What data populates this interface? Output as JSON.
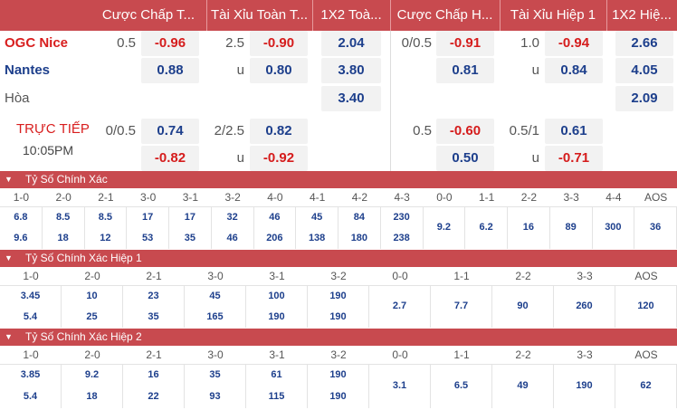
{
  "header": {
    "cols": [
      "Cược Chấp T...",
      "Tài Xỉu Toàn T...",
      "1X2 Toà...",
      "Cược Chấp H...",
      "Tài Xỉu Hiệp 1",
      "1X2 Hiệ..."
    ]
  },
  "teams": {
    "home": "OGC Nice",
    "away": "Nantes",
    "draw": "Hòa"
  },
  "live": {
    "label": "TRỰC TIẾP",
    "time": "10:05PM"
  },
  "odds": {
    "r1": {
      "hcp": "0.5",
      "hcp_odds": "-0.96",
      "ou": "2.5",
      "ou_odds": "-0.90",
      "x12": "2.04",
      "h1hcp": "0/0.5",
      "h1hcp_odds": "-0.91",
      "h1ou": "1.0",
      "h1ou_odds": "-0.94",
      "h1x12": "2.66"
    },
    "r2": {
      "hcp_odds": "0.88",
      "ou": "u",
      "ou_odds": "0.80",
      "x12": "3.80",
      "h1hcp_odds": "0.81",
      "h1ou": "u",
      "h1ou_odds": "0.84",
      "h1x12": "4.05"
    },
    "r3": {
      "x12": "3.40",
      "h1x12": "2.09"
    },
    "r4": {
      "hcp": "0/0.5",
      "hcp_odds": "0.74",
      "ou": "2/2.5",
      "ou_odds": "0.82",
      "h1hcp": "0.5",
      "h1hcp_odds": "-0.60",
      "h1ou": "0.5/1",
      "h1ou_odds": "0.61"
    },
    "r5": {
      "hcp_odds": "-0.82",
      "ou": "u",
      "ou_odds": "-0.92",
      "h1hcp_odds": "0.50",
      "h1ou": "u",
      "h1ou_odds": "-0.71"
    }
  },
  "sections": [
    {
      "title": "Tỷ Số Chính Xác",
      "labels": [
        "1-0",
        "2-0",
        "2-1",
        "3-0",
        "3-1",
        "3-2",
        "4-0",
        "4-1",
        "4-2",
        "4-3",
        "0-0",
        "1-1",
        "2-2",
        "3-3",
        "4-4",
        "AOS"
      ],
      "top": [
        "6.8",
        "8.5",
        "8.5",
        "17",
        "17",
        "32",
        "46",
        "45",
        "84",
        "230",
        "9.2",
        "6.2",
        "16",
        "89",
        "300",
        "36"
      ],
      "bottom": [
        "9.6",
        "18",
        "12",
        "53",
        "35",
        "46",
        "206",
        "138",
        "180",
        "238",
        "",
        "",
        "",
        "",
        "",
        ""
      ]
    },
    {
      "title": "Tỷ Số Chính Xác Hiệp 1",
      "labels": [
        "1-0",
        "2-0",
        "2-1",
        "3-0",
        "3-1",
        "3-2",
        "0-0",
        "1-1",
        "2-2",
        "3-3",
        "AOS"
      ],
      "top": [
        "3.45",
        "10",
        "23",
        "45",
        "100",
        "190",
        "2.7",
        "7.7",
        "90",
        "260",
        "120"
      ],
      "bottom": [
        "5.4",
        "25",
        "35",
        "165",
        "190",
        "190",
        "",
        "",
        "",
        "",
        ""
      ]
    },
    {
      "title": "Tỷ Số Chính Xác Hiệp 2",
      "labels": [
        "1-0",
        "2-0",
        "2-1",
        "3-0",
        "3-1",
        "3-2",
        "0-0",
        "1-1",
        "2-2",
        "3-3",
        "AOS"
      ],
      "top": [
        "3.85",
        "9.2",
        "16",
        "35",
        "61",
        "190",
        "3.1",
        "6.5",
        "49",
        "190",
        "62"
      ],
      "bottom": [
        "5.4",
        "18",
        "22",
        "93",
        "115",
        "190",
        "",
        "",
        "",
        "",
        ""
      ]
    }
  ],
  "colors": {
    "header_bg": "#c84a4f",
    "negative": "#d51c1c",
    "positive": "#1d3f8c"
  },
  "icons": {
    "section_toggle": "chevron-down-icon"
  }
}
